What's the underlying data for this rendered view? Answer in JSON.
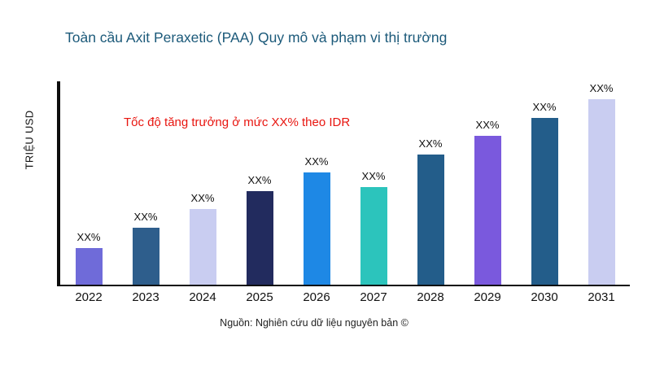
{
  "chart_data": {
    "type": "bar",
    "title": "Toàn cầu Axit Peraxetic (PAA) Quy mô và phạm vi thị trường",
    "ylabel": "TRIỆU USD",
    "xlabel": "",
    "categories": [
      "2022",
      "2023",
      "2024",
      "2025",
      "2026",
      "2027",
      "2028",
      "2029",
      "2030",
      "2031"
    ],
    "values": [
      18,
      28,
      37,
      46,
      55,
      48,
      64,
      73,
      82,
      91
    ],
    "value_labels": [
      "XX%",
      "XX%",
      "XX%",
      "XX%",
      "XX%",
      "XX%",
      "XX%",
      "XX%",
      "XX%",
      "XX%"
    ],
    "bar_colors": [
      "#6f6bd9",
      "#2e5e8c",
      "#c9cdf1",
      "#222b5e",
      "#1e88e5",
      "#2cc4bc",
      "#235d8a",
      "#7a59dd",
      "#235d8a",
      "#c9cdf1"
    ],
    "ylim": [
      0,
      100
    ],
    "grid": false,
    "legend": "none",
    "annotation": "Tốc độ tăng trưởng ở mức XX% theo IDR",
    "source": "Nguồn: Nghiên cứu dữ liệu nguyên bản ©"
  },
  "colors": {
    "title_text": "#1c5a7a",
    "annotation_text": "#e8150f",
    "axis_line": "#0d0d0d",
    "tick_text": "#111111",
    "background": "#ffffff"
  }
}
